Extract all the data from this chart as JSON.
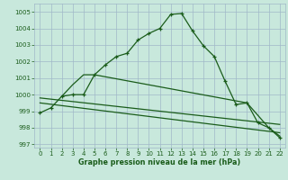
{
  "xlabel": "Graphe pression niveau de la mer (hPa)",
  "background_color": "#c8e8dc",
  "grid_color": "#a0b8c8",
  "line_color": "#1a5c1a",
  "xlim": [
    -0.5,
    22.5
  ],
  "ylim": [
    996.8,
    1005.5
  ],
  "yticks": [
    997,
    998,
    999,
    1000,
    1001,
    1002,
    1003,
    1004,
    1005
  ],
  "xticks": [
    0,
    1,
    2,
    3,
    4,
    5,
    6,
    7,
    8,
    9,
    10,
    11,
    12,
    13,
    14,
    15,
    16,
    17,
    18,
    19,
    20,
    21,
    22
  ],
  "series1_x": [
    0,
    1,
    2,
    3,
    4,
    5,
    6,
    7,
    8,
    9,
    10,
    11,
    12,
    13,
    14,
    15,
    16,
    17,
    18,
    19,
    20,
    21,
    22
  ],
  "series1_y": [
    998.9,
    999.2,
    999.9,
    1000.0,
    1000.0,
    1001.2,
    1001.8,
    1002.3,
    1002.5,
    1003.3,
    1003.7,
    1004.0,
    1004.85,
    1004.9,
    1003.85,
    1002.95,
    1002.3,
    1000.8,
    999.4,
    999.5,
    998.3,
    998.0,
    997.4
  ],
  "series2_x": [
    2,
    3,
    4,
    5,
    19,
    21,
    22
  ],
  "series2_y": [
    999.9,
    1000.6,
    1001.2,
    1001.2,
    999.5,
    998.0,
    997.5
  ],
  "series3_x": [
    0,
    22
  ],
  "series3_y": [
    999.8,
    998.2
  ],
  "series4_x": [
    0,
    22
  ],
  "series4_y": [
    999.5,
    997.7
  ]
}
